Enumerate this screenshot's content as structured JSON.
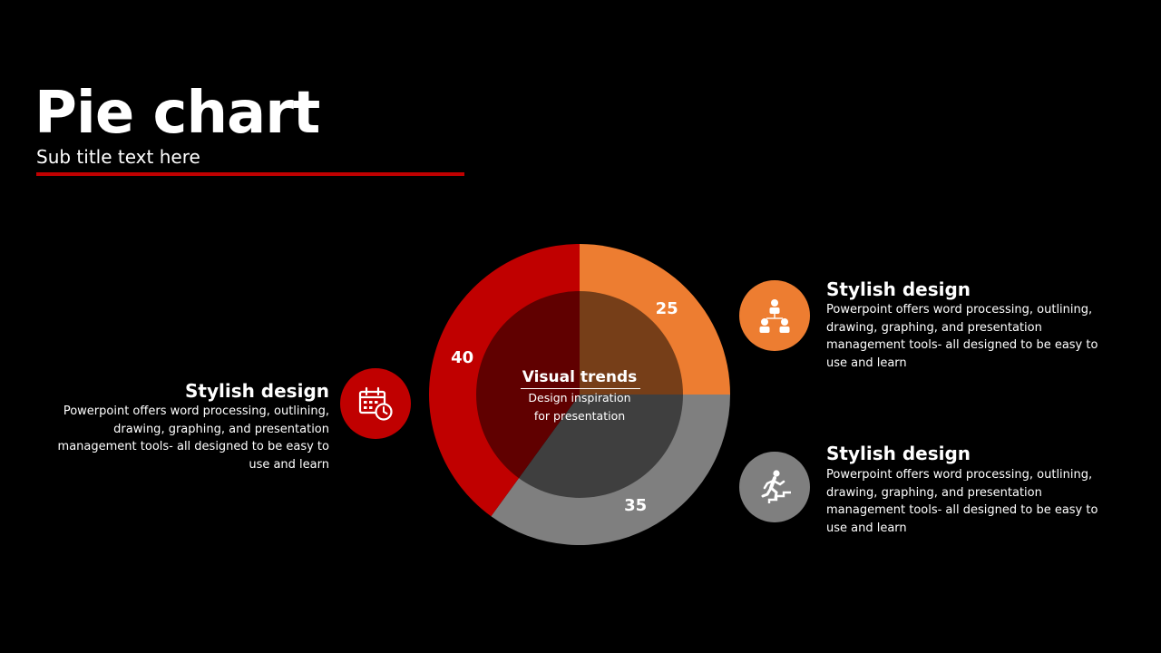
{
  "slide": {
    "title": "Pie chart",
    "subtitle": "Sub title text here",
    "accent_color": "#c00000"
  },
  "chart_data": {
    "type": "pie",
    "categories": [
      "",
      "",
      ""
    ],
    "values": [
      25,
      35,
      40
    ],
    "colors": [
      "#ed7d31",
      "#7f7f7f",
      "#c00000"
    ],
    "data_labels": [
      "25",
      "35",
      "40"
    ],
    "title": "",
    "legend": "none",
    "center_label": {
      "title": "Visual trends",
      "subtitle_line1": "Design inspiration",
      "subtitle_line2": "for presentation"
    }
  },
  "callouts": [
    {
      "heading": "Stylish design",
      "body": "Powerpoint offers word processing, outlining, drawing, graphing, and presentation management tools- all designed to be easy to use and learn",
      "icon": "team-icon",
      "color": "#ed7d31"
    },
    {
      "heading": "Stylish design",
      "body": "Powerpoint offers word processing, outlining, drawing, graphing, and presentation management tools- all designed to be easy to use and learn",
      "icon": "stairs-climber-icon",
      "color": "#7f7f7f"
    },
    {
      "heading": "Stylish design",
      "body": "Powerpoint offers word processing, outlining, drawing, graphing, and presentation management tools- all designed to be easy to use and learn",
      "icon": "calendar-clock-icon",
      "color": "#c00000"
    }
  ]
}
